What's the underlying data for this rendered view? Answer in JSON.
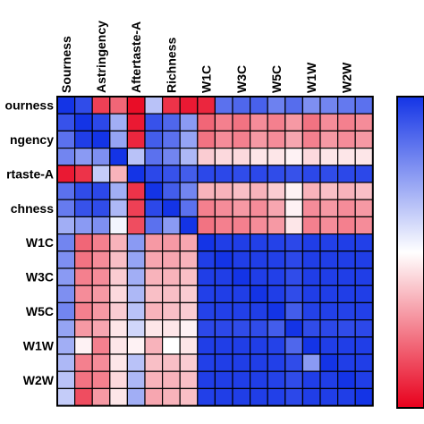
{
  "chart_data": {
    "type": "heatmap",
    "title": "",
    "xlabel": "",
    "ylabel": "",
    "x_labels": [
      "Sourness",
      "",
      "Astringency",
      "",
      "Aftertaste-A",
      "",
      "Richness",
      "",
      "W1C",
      "",
      "W3C",
      "",
      "W5C",
      "",
      "W1W",
      "",
      "W2W",
      ""
    ],
    "y_labels": [
      "Sourness",
      "",
      "Astringency",
      "",
      "Aftertaste-A",
      "",
      "Richness",
      "",
      "W1C",
      "",
      "W3C",
      "",
      "W5C",
      "",
      "W1W",
      "",
      "W2W",
      ""
    ],
    "y_labels_visible_text": [
      "ourness",
      "",
      "ngency",
      "",
      "rtaste-A",
      "",
      "chness",
      "",
      "W1C",
      "",
      "W3C",
      "",
      "W5C",
      "",
      "W1W",
      "",
      "W2W",
      ""
    ],
    "colorscale": {
      "low": "#e8001c",
      "mid": "#ffffff",
      "high": "#1434e6",
      "range": [
        -1,
        1
      ]
    },
    "colorbar_ticks_visible": false,
    "values": [
      [
        1.0,
        0.88,
        -0.75,
        -0.6,
        -0.95,
        0.3,
        -0.8,
        -0.9,
        -0.85,
        0.7,
        0.75,
        0.78,
        0.62,
        0.72,
        0.55,
        0.6,
        0.66,
        0.7
      ],
      [
        0.85,
        1.0,
        0.9,
        0.4,
        -0.9,
        0.85,
        0.75,
        0.5,
        -0.6,
        -0.5,
        -0.55,
        -0.45,
        -0.5,
        -0.4,
        -0.55,
        -0.45,
        -0.5,
        -0.45
      ],
      [
        0.7,
        0.95,
        1.0,
        0.45,
        -0.85,
        0.8,
        0.7,
        0.45,
        -0.55,
        -0.45,
        -0.5,
        -0.4,
        -0.45,
        -0.35,
        -0.5,
        -0.4,
        -0.45,
        -0.4
      ],
      [
        0.6,
        0.5,
        0.55,
        1.0,
        0.3,
        0.7,
        0.6,
        0.35,
        -0.2,
        -0.15,
        -0.15,
        -0.1,
        -0.1,
        -0.05,
        -0.15,
        -0.1,
        -0.1,
        -0.1
      ],
      [
        -0.9,
        -0.8,
        0.25,
        -0.3,
        1.0,
        0.9,
        0.85,
        0.8,
        0.9,
        0.9,
        0.88,
        0.9,
        0.88,
        0.85,
        0.9,
        0.88,
        0.9,
        0.9
      ],
      [
        0.7,
        0.88,
        0.9,
        0.4,
        -0.8,
        1.0,
        0.8,
        0.6,
        -0.3,
        -0.3,
        -0.25,
        -0.3,
        -0.2,
        -0.05,
        -0.3,
        -0.25,
        -0.3,
        -0.25
      ],
      [
        0.65,
        0.85,
        0.88,
        0.35,
        -0.75,
        0.9,
        1.0,
        0.7,
        -0.5,
        -0.45,
        -0.4,
        -0.45,
        -0.35,
        -0.05,
        -0.45,
        -0.4,
        -0.45,
        -0.4
      ],
      [
        0.4,
        0.5,
        0.55,
        0.05,
        -0.7,
        0.7,
        0.5,
        1.0,
        -0.55,
        -0.5,
        -0.5,
        -0.45,
        -0.4,
        -0.1,
        -0.5,
        -0.45,
        -0.5,
        -0.45
      ],
      [
        0.6,
        -0.6,
        -0.5,
        -0.3,
        0.5,
        -0.4,
        -0.4,
        -0.35,
        1.0,
        0.95,
        0.95,
        0.94,
        0.93,
        0.9,
        0.95,
        0.94,
        0.95,
        0.94
      ],
      [
        0.55,
        -0.55,
        -0.45,
        -0.25,
        0.45,
        -0.35,
        -0.35,
        -0.3,
        0.95,
        1.0,
        0.95,
        0.95,
        0.94,
        0.9,
        0.95,
        0.95,
        0.95,
        0.95
      ],
      [
        0.5,
        -0.5,
        -0.45,
        -0.2,
        0.4,
        -0.3,
        -0.3,
        -0.25,
        0.95,
        0.95,
        1.0,
        0.95,
        0.94,
        0.88,
        0.95,
        0.95,
        0.95,
        0.95
      ],
      [
        0.55,
        -0.45,
        -0.4,
        -0.15,
        0.35,
        -0.25,
        -0.25,
        -0.2,
        0.94,
        0.95,
        0.95,
        1.0,
        0.95,
        0.88,
        0.95,
        0.95,
        0.95,
        0.95
      ],
      [
        0.6,
        -0.5,
        -0.4,
        -0.2,
        0.3,
        -0.3,
        -0.25,
        -0.2,
        0.93,
        0.94,
        0.94,
        0.95,
        1.0,
        0.8,
        0.93,
        0.94,
        0.93,
        0.94
      ],
      [
        0.45,
        -0.4,
        -0.35,
        -0.1,
        0.2,
        -0.1,
        -0.1,
        -0.05,
        0.9,
        0.9,
        0.88,
        0.88,
        0.8,
        1.0,
        0.88,
        0.9,
        0.88,
        0.9
      ],
      [
        0.4,
        -0.05,
        -0.5,
        -0.1,
        -0.05,
        -0.3,
        0.0,
        -0.1,
        0.95,
        0.95,
        0.95,
        0.95,
        0.93,
        0.75,
        1.0,
        0.95,
        0.95,
        0.95
      ],
      [
        0.35,
        -0.5,
        -0.45,
        -0.1,
        0.3,
        -0.25,
        -0.25,
        -0.2,
        0.94,
        0.95,
        0.95,
        0.95,
        0.94,
        0.88,
        0.5,
        1.0,
        0.95,
        0.95
      ],
      [
        0.3,
        -0.55,
        -0.5,
        -0.15,
        0.35,
        -0.3,
        -0.3,
        -0.25,
        0.95,
        0.95,
        0.95,
        0.95,
        0.93,
        0.88,
        0.95,
        0.95,
        1.0,
        0.95
      ],
      [
        0.25,
        -0.7,
        -0.4,
        -0.1,
        0.4,
        -0.35,
        -0.3,
        -0.25,
        0.94,
        0.95,
        0.95,
        0.95,
        0.94,
        0.9,
        0.95,
        0.95,
        0.95,
        1.0
      ]
    ]
  }
}
